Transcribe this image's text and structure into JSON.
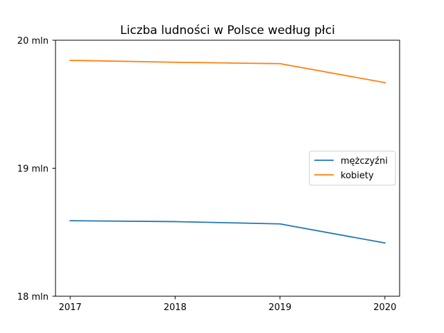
{
  "chart_data": {
    "type": "line",
    "title": "Liczba ludności w Polsce według płci",
    "xlabel": "",
    "ylabel": "",
    "x": [
      2017,
      2018,
      2019,
      2020
    ],
    "x_tick_labels": [
      "2017",
      "2018",
      "2019",
      "2020"
    ],
    "xlim": [
      2016.86,
      2020.14
    ],
    "y_ticks": [
      18000000,
      19000000,
      20000000
    ],
    "y_tick_labels": [
      "18 mln",
      "19 mln",
      "20 mln"
    ],
    "ylim": [
      18000000,
      20000000
    ],
    "series": [
      {
        "name": "mężczyźni",
        "color": "#1f77b4",
        "values": [
          18590000,
          18583000,
          18565000,
          18416000
        ]
      },
      {
        "name": "kobiety",
        "color": "#ff7f0e",
        "values": [
          19843000,
          19828000,
          19817000,
          19669000
        ]
      }
    ],
    "grid": false,
    "legend_position": "center-right"
  }
}
